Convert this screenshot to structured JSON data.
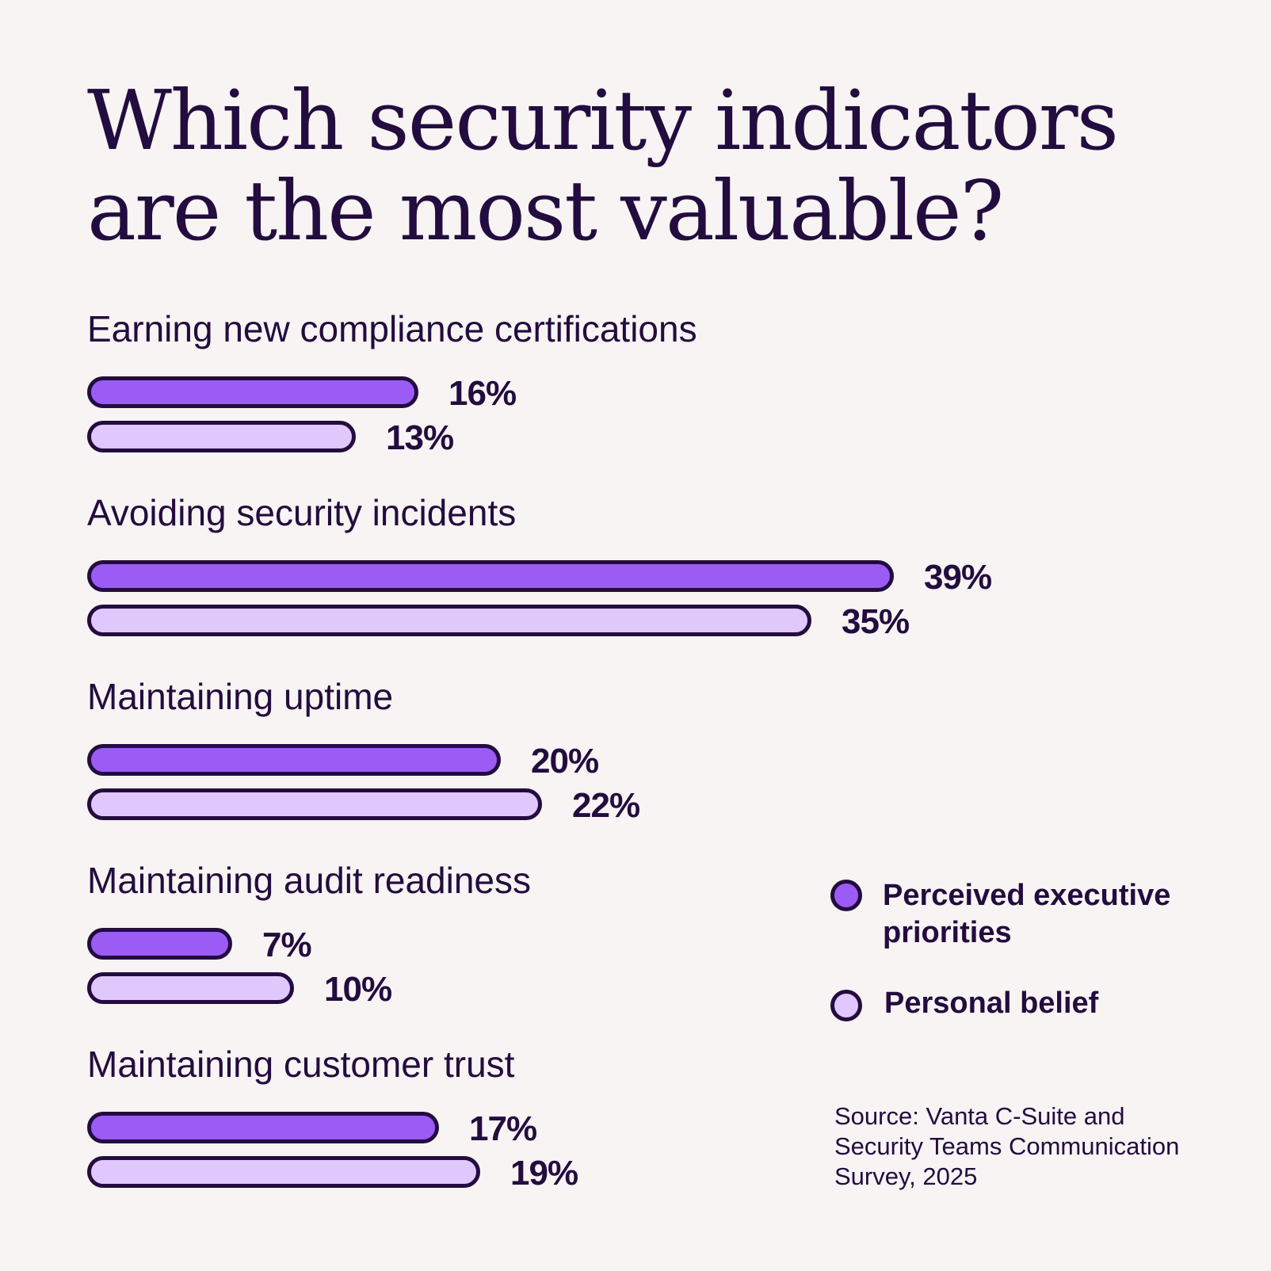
{
  "colors": {
    "background": "#f7f4f3",
    "text": "#230c3f",
    "series_executive": "#9b5cf6",
    "series_personal": "#e1c8fc",
    "outline": "#230c3f"
  },
  "title": {
    "line1": "Which security indicators",
    "line2": "are the most valuable?"
  },
  "chart_data": {
    "type": "bar",
    "orientation": "horizontal",
    "title": "Which security indicators are the most valuable?",
    "categories": [
      "Earning new compliance certifications",
      "Avoiding security incidents",
      "Maintaining uptime",
      "Maintaining audit readiness",
      "Maintaining customer trust"
    ],
    "series": [
      {
        "name": "Perceived executive priorities",
        "values": [
          16,
          39,
          20,
          7,
          17
        ],
        "labels": [
          "16%",
          "39%",
          "20%",
          "7%",
          "17%"
        ]
      },
      {
        "name": "Personal belief",
        "values": [
          13,
          35,
          22,
          10,
          19
        ],
        "labels": [
          "13%",
          "35%",
          "22%",
          "10%",
          "19%"
        ]
      }
    ],
    "unit": "%",
    "xlim": [
      0,
      39
    ],
    "grid": false,
    "legend_placement": "right"
  },
  "legend": {
    "executive": "Perceived executive priorities",
    "personal": "Personal belief"
  },
  "source": "Source: Vanta C-Suite and Security Teams Communication Survey, 2025"
}
